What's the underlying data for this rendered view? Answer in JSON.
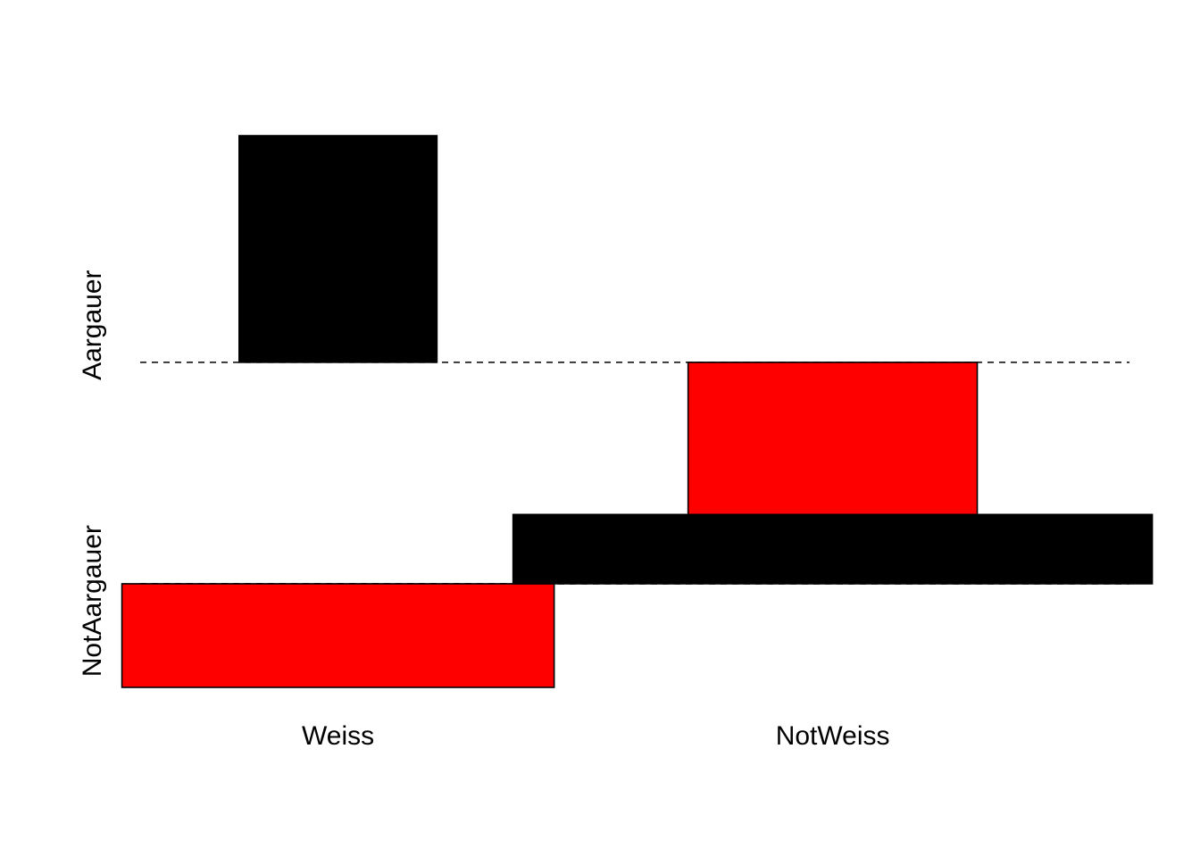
{
  "chart_data": {
    "type": "bar",
    "subtype": "association-plot",
    "columns": [
      {
        "label": "Weiss",
        "width": 1.3
      },
      {
        "label": "NotWeiss",
        "width": 1.95
      }
    ],
    "rows": [
      {
        "label": "Aargauer",
        "height": 0.4
      },
      {
        "label": "NotAargauer",
        "height": 0.2
      }
    ],
    "cells": [
      {
        "row": "Aargauer",
        "col": "Weiss",
        "residual": 3.5,
        "width": 0.65
      },
      {
        "row": "Aargauer",
        "col": "NotWeiss",
        "residual": -2.35,
        "width": 0.95
      },
      {
        "row": "NotAargauer",
        "col": "Weiss",
        "residual": -1.6,
        "width": 1.42
      },
      {
        "row": "NotAargauer",
        "col": "NotWeiss",
        "residual": 1.07,
        "width": 2.1
      }
    ],
    "colors": {
      "positive": "#000000",
      "negative": "#ff0000"
    },
    "title": "",
    "xlabel": "",
    "ylabel": "",
    "legend": "none",
    "grid": false
  }
}
